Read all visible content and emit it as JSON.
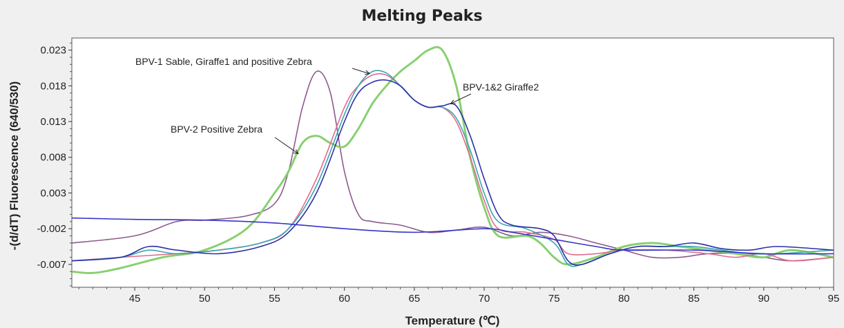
{
  "chart_data": {
    "type": "line",
    "title": "Melting Peaks",
    "xlabel": "Temperature (℃)",
    "ylabel": "-(d/dT) Fluorescence (640/530)",
    "xlim": [
      40.5,
      95
    ],
    "ylim": [
      -0.0102,
      0.0247
    ],
    "x_ticks": [
      45,
      50,
      55,
      60,
      65,
      70,
      75,
      80,
      85,
      90,
      95
    ],
    "y_ticks": [
      -0.007,
      -0.002,
      0.003,
      0.008,
      0.013,
      0.018,
      0.023
    ],
    "x_tick_labels": [
      "45",
      "50",
      "55",
      "60",
      "65",
      "70",
      "75",
      "80",
      "85",
      "90",
      "95"
    ],
    "y_tick_labels": [
      "-0.007",
      "-0.002",
      "0.003",
      "0.008",
      "0.013",
      "0.018",
      "0.023"
    ],
    "grid": false,
    "series": [
      {
        "color": "#8c5a8c",
        "points": [
          [
            40.5,
            -0.004
          ],
          [
            45,
            -0.003
          ],
          [
            48,
            -0.001
          ],
          [
            50,
            -0.0008
          ],
          [
            53,
            -0.0002
          ],
          [
            55,
            0.0015
          ],
          [
            56,
            0.006
          ],
          [
            57,
            0.015
          ],
          [
            58,
            0.02
          ],
          [
            59,
            0.017
          ],
          [
            60,
            0.006
          ],
          [
            61,
            0.0
          ],
          [
            62,
            -0.001
          ],
          [
            64,
            -0.0015
          ],
          [
            66,
            -0.0025
          ],
          [
            68,
            -0.0022
          ],
          [
            70,
            -0.0018
          ],
          [
            72,
            -0.003
          ],
          [
            74,
            -0.0025
          ],
          [
            76,
            -0.003
          ],
          [
            78,
            -0.004
          ],
          [
            80,
            -0.005
          ],
          [
            82,
            -0.006
          ],
          [
            84,
            -0.006
          ],
          [
            86,
            -0.0055
          ],
          [
            88,
            -0.0055
          ],
          [
            90,
            -0.006
          ],
          [
            92,
            -0.0065
          ],
          [
            95,
            -0.006
          ]
        ]
      },
      {
        "color": "#88d070",
        "points": [
          [
            40.5,
            -0.008
          ],
          [
            42,
            -0.0082
          ],
          [
            44,
            -0.0075
          ],
          [
            47,
            -0.006
          ],
          [
            50,
            -0.005
          ],
          [
            53,
            -0.002
          ],
          [
            55,
            0.003
          ],
          [
            56,
            0.006
          ],
          [
            57,
            0.01
          ],
          [
            58,
            0.011
          ],
          [
            59,
            0.01
          ],
          [
            60,
            0.0095
          ],
          [
            61,
            0.012
          ],
          [
            62,
            0.0155
          ],
          [
            63,
            0.018
          ],
          [
            64,
            0.02
          ],
          [
            65,
            0.0215
          ],
          [
            66,
            0.023
          ],
          [
            67,
            0.023
          ],
          [
            68,
            0.018
          ],
          [
            69,
            0.008
          ],
          [
            70,
            0.001
          ],
          [
            71,
            -0.003
          ],
          [
            73,
            -0.003
          ],
          [
            74,
            -0.004
          ],
          [
            75,
            -0.006
          ],
          [
            76,
            -0.007
          ],
          [
            78,
            -0.006
          ],
          [
            80,
            -0.0045
          ],
          [
            82,
            -0.004
          ],
          [
            84,
            -0.0045
          ],
          [
            86,
            -0.005
          ],
          [
            88,
            -0.0055
          ],
          [
            90,
            -0.006
          ],
          [
            92,
            -0.005
          ],
          [
            95,
            -0.006
          ]
        ]
      },
      {
        "color": "#e26a8c",
        "points": [
          [
            40.5,
            -0.0065
          ],
          [
            44,
            -0.006
          ],
          [
            48,
            -0.0055
          ],
          [
            51,
            -0.005
          ],
          [
            54,
            -0.004
          ],
          [
            56,
            -0.002
          ],
          [
            58,
            0.005
          ],
          [
            60,
            0.015
          ],
          [
            61,
            0.018
          ],
          [
            62,
            0.0195
          ],
          [
            63,
            0.0195
          ],
          [
            64,
            0.018
          ],
          [
            65,
            0.016
          ],
          [
            66,
            0.015
          ],
          [
            67,
            0.015
          ],
          [
            68,
            0.013
          ],
          [
            69,
            0.008
          ],
          [
            70,
            0.002
          ],
          [
            71,
            -0.002
          ],
          [
            73,
            -0.0025
          ],
          [
            75,
            -0.0035
          ],
          [
            76,
            -0.0055
          ],
          [
            78,
            -0.0055
          ],
          [
            80,
            -0.005
          ],
          [
            83,
            -0.005
          ],
          [
            86,
            -0.0055
          ],
          [
            88,
            -0.006
          ],
          [
            90,
            -0.0055
          ],
          [
            92,
            -0.0065
          ],
          [
            95,
            -0.006
          ]
        ]
      },
      {
        "color": "#3aa6b0",
        "points": [
          [
            40.5,
            -0.0065
          ],
          [
            44,
            -0.006
          ],
          [
            46,
            -0.005
          ],
          [
            48,
            -0.0055
          ],
          [
            51,
            -0.005
          ],
          [
            54,
            -0.004
          ],
          [
            56,
            -0.002
          ],
          [
            58,
            0.004
          ],
          [
            60,
            0.014
          ],
          [
            61,
            0.018
          ],
          [
            62,
            0.02
          ],
          [
            63,
            0.0198
          ],
          [
            64,
            0.018
          ],
          [
            65,
            0.016
          ],
          [
            66,
            0.015
          ],
          [
            67,
            0.015
          ],
          [
            68,
            0.0135
          ],
          [
            69,
            0.009
          ],
          [
            70,
            0.003
          ],
          [
            71,
            -0.001
          ],
          [
            73,
            -0.002
          ],
          [
            75,
            -0.004
          ],
          [
            76,
            -0.007
          ],
          [
            77,
            -0.007
          ],
          [
            79,
            -0.0055
          ],
          [
            81,
            -0.0045
          ],
          [
            83,
            -0.0045
          ],
          [
            85,
            -0.0045
          ],
          [
            87,
            -0.005
          ],
          [
            89,
            -0.0055
          ],
          [
            91,
            -0.0055
          ],
          [
            95,
            -0.005
          ]
        ]
      },
      {
        "color": "#2b2fa8",
        "points": [
          [
            40.5,
            -0.0065
          ],
          [
            44,
            -0.006
          ],
          [
            46,
            -0.0045
          ],
          [
            48,
            -0.005
          ],
          [
            51,
            -0.0055
          ],
          [
            54,
            -0.0045
          ],
          [
            56,
            -0.0025
          ],
          [
            58,
            0.003
          ],
          [
            60,
            0.013
          ],
          [
            61,
            0.017
          ],
          [
            62,
            0.0185
          ],
          [
            63,
            0.0188
          ],
          [
            64,
            0.018
          ],
          [
            65,
            0.016
          ],
          [
            66,
            0.015
          ],
          [
            67,
            0.0152
          ],
          [
            68,
            0.0152
          ],
          [
            69,
            0.011
          ],
          [
            70,
            0.005
          ],
          [
            71,
            0.0
          ],
          [
            72,
            -0.0015
          ],
          [
            74,
            -0.002
          ],
          [
            75,
            -0.003
          ],
          [
            76,
            -0.0065
          ],
          [
            77,
            -0.007
          ],
          [
            79,
            -0.0055
          ],
          [
            81,
            -0.0045
          ],
          [
            83,
            -0.0045
          ],
          [
            85,
            -0.004
          ],
          [
            87,
            -0.0048
          ],
          [
            89,
            -0.005
          ],
          [
            91,
            -0.0045
          ],
          [
            95,
            -0.005
          ]
        ]
      },
      {
        "color": "#3434c8",
        "points": [
          [
            40.5,
            -0.0005
          ],
          [
            45,
            -0.0007
          ],
          [
            50,
            -0.0008
          ],
          [
            55,
            -0.0012
          ],
          [
            60,
            -0.002
          ],
          [
            65,
            -0.0025
          ],
          [
            70,
            -0.002
          ],
          [
            72,
            -0.0025
          ],
          [
            75,
            -0.0035
          ],
          [
            78,
            -0.0045
          ],
          [
            80,
            -0.005
          ],
          [
            85,
            -0.005
          ],
          [
            90,
            -0.0055
          ],
          [
            95,
            -0.0055
          ]
        ]
      }
    ],
    "annotations": [
      {
        "text": "BPV-1 Sable, Giraffe1 and positive Zebra",
        "arrow_to": [
          61.8,
          0.0197
        ]
      },
      {
        "text": "BPV-1&2 Giraffe2",
        "arrow_to": [
          67.6,
          0.0155
        ]
      },
      {
        "text": "BPV-2 Positive Zebra",
        "arrow_to": [
          56.7,
          0.0085
        ]
      }
    ]
  }
}
